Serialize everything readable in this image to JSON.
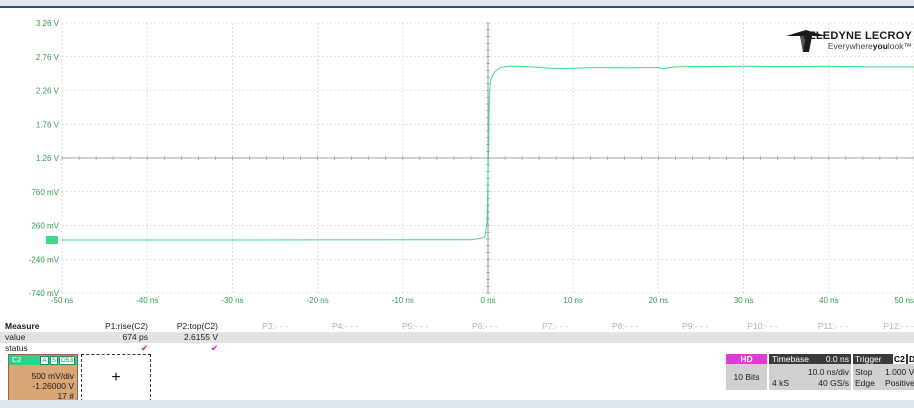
{
  "chart_data": {
    "type": "line",
    "y_tick_labels": [
      "3.26 V",
      "2.76 V",
      "2.26 V",
      "1.76 V",
      "1.26 V",
      "760 mV",
      "260 mV",
      "-240 mV",
      "-740 mV"
    ],
    "y_tick_values": [
      3.26,
      2.76,
      2.26,
      1.76,
      1.26,
      0.76,
      0.26,
      -0.24,
      -0.74
    ],
    "x_tick_labels": [
      "-50 ns",
      "-40 ns",
      "-30 ns",
      "-20 ns",
      "-10 ns",
      "0 ns",
      "10 ns",
      "20 ns",
      "30 ns",
      "40 ns",
      "50 ns"
    ],
    "x_tick_values": [
      -50,
      -40,
      -30,
      -20,
      -10,
      0,
      10,
      20,
      30,
      40,
      50
    ],
    "ylim": [
      -0.74,
      3.26
    ],
    "xlim": [
      -50,
      50
    ],
    "grid": true,
    "trace_color": "#3ddc84",
    "series": [
      {
        "channel": "C2",
        "x": [
          -50,
          -40,
          -30,
          -20,
          -10,
          -2,
          -0.4,
          -0.1,
          0.05,
          0.15,
          0.3,
          0.6,
          1.0,
          1.5,
          2.5,
          4,
          6,
          8,
          10,
          13,
          16,
          20,
          20.5,
          22,
          25,
          30,
          35,
          40,
          45,
          50
        ],
        "y": [
          0.045,
          0.045,
          0.045,
          0.047,
          0.048,
          0.05,
          0.08,
          0.3,
          1.3,
          2.2,
          2.4,
          2.5,
          2.56,
          2.6,
          2.62,
          2.62,
          2.6,
          2.585,
          2.59,
          2.6,
          2.595,
          2.6,
          2.585,
          2.61,
          2.615,
          2.62,
          2.615,
          2.62,
          2.61,
          2.61
        ]
      }
    ]
  },
  "logo": {
    "brand_bold": "TELEDYNE",
    "brand_rest": " LECROY",
    "tag_pre": "Everywhere",
    "tag_bold": "you",
    "tag_post": "look",
    "tag_tm": "™"
  },
  "measure": {
    "header_label": "Measure",
    "row_value_label": "value",
    "row_status_label": "status",
    "params": [
      {
        "name": "P1:rise(C2)",
        "value": "674 ps",
        "status": "✔"
      },
      {
        "name": "P2:top(C2)",
        "value": "2.6155 V",
        "status": "✔"
      },
      {
        "name": "P3:- - -",
        "value": "",
        "status": ""
      },
      {
        "name": "P4:- - -",
        "value": "",
        "status": ""
      },
      {
        "name": "P5:- - -",
        "value": "",
        "status": ""
      },
      {
        "name": "P6:- - -",
        "value": "",
        "status": ""
      },
      {
        "name": "P7:- - -",
        "value": "",
        "status": ""
      },
      {
        "name": "P8:- - -",
        "value": "",
        "status": ""
      },
      {
        "name": "P9:- - -",
        "value": "",
        "status": ""
      },
      {
        "name": "P10:- - -",
        "value": "",
        "status": ""
      },
      {
        "name": "P11:- - -",
        "value": "",
        "status": ""
      },
      {
        "name": "P12:- - -",
        "value": "",
        "status": ""
      }
    ]
  },
  "channel": {
    "name": "C2",
    "flags": [
      "A",
      "S",
      "D53"
    ],
    "vdiv": "500 mV/div",
    "offset": "-1.26000 V",
    "sweeps": "17 #"
  },
  "add_trace_label": "+",
  "hd": {
    "badge": "HD",
    "bits": "10 Bits"
  },
  "timebase": {
    "label": "Timebase",
    "delay": "0.0 ns",
    "tdiv": "10.0 ns/div",
    "samples": "4 kS",
    "rate": "40 GS/s"
  },
  "trigger": {
    "label": "Trigger",
    "chip": "C2",
    "chip2": "DC",
    "mode": "Stop",
    "level": "1.000 V",
    "type": "Edge",
    "slope": "Positive"
  }
}
